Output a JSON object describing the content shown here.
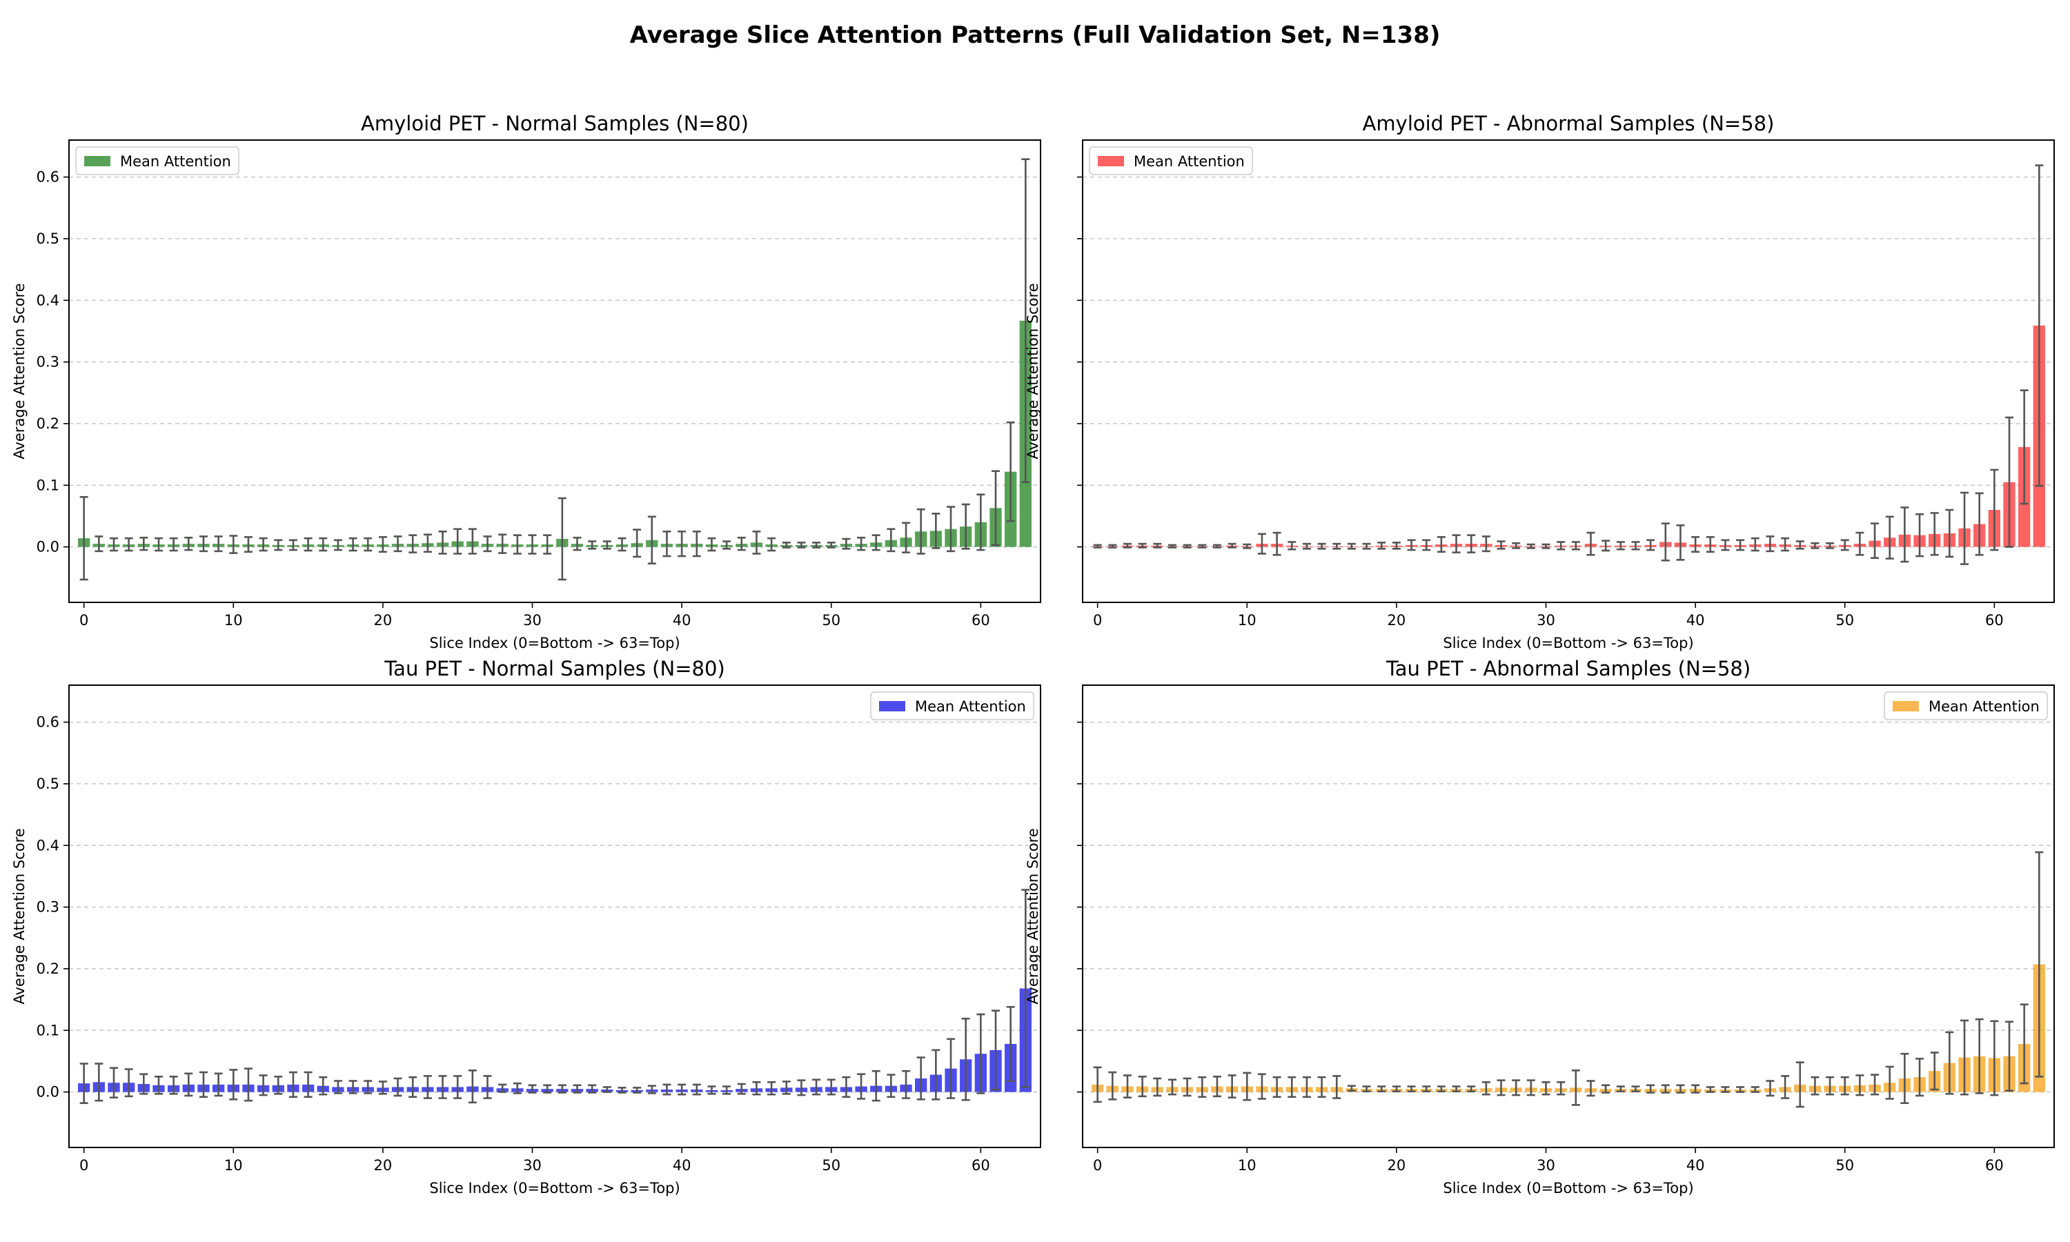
{
  "figure": {
    "title": "Average Slice Attention Patterns (Full Validation Set, N=138)"
  },
  "chart_data": [
    {
      "type": "bar",
      "title": "Amyloid PET - Normal Samples (N=80)",
      "xlabel": "Slice Index (0=Bottom -> 63=Top)",
      "ylabel": "Average Attention Score",
      "xlim": [
        -1,
        64
      ],
      "ylim": [
        -0.09,
        0.66
      ],
      "xticks": [
        0,
        10,
        20,
        30,
        40,
        50,
        60
      ],
      "yticks": [
        0.0,
        0.1,
        0.2,
        0.3,
        0.4,
        0.5,
        0.6
      ],
      "grid": "y",
      "legend": "top-left",
      "series": [
        {
          "name": "Mean Attention",
          "color": "#2e8b2e",
          "values": [
            0.014,
            0.005,
            0.004,
            0.004,
            0.005,
            0.004,
            0.004,
            0.005,
            0.005,
            0.005,
            0.004,
            0.004,
            0.004,
            0.003,
            0.003,
            0.004,
            0.004,
            0.003,
            0.004,
            0.004,
            0.004,
            0.005,
            0.005,
            0.006,
            0.007,
            0.009,
            0.009,
            0.005,
            0.005,
            0.004,
            0.004,
            0.004,
            0.013,
            0.005,
            0.003,
            0.003,
            0.004,
            0.006,
            0.011,
            0.005,
            0.005,
            0.005,
            0.004,
            0.003,
            0.005,
            0.007,
            0.004,
            0.003,
            0.003,
            0.003,
            0.003,
            0.005,
            0.005,
            0.007,
            0.011,
            0.015,
            0.025,
            0.026,
            0.029,
            0.033,
            0.04,
            0.063,
            0.122,
            0.367
          ],
          "errors": [
            0.067,
            0.012,
            0.01,
            0.01,
            0.01,
            0.01,
            0.01,
            0.01,
            0.012,
            0.012,
            0.014,
            0.012,
            0.01,
            0.008,
            0.008,
            0.01,
            0.01,
            0.008,
            0.01,
            0.01,
            0.012,
            0.012,
            0.014,
            0.014,
            0.018,
            0.02,
            0.02,
            0.012,
            0.015,
            0.015,
            0.015,
            0.015,
            0.066,
            0.01,
            0.006,
            0.006,
            0.01,
            0.022,
            0.038,
            0.02,
            0.02,
            0.02,
            0.01,
            0.006,
            0.01,
            0.018,
            0.01,
            0.004,
            0.004,
            0.004,
            0.004,
            0.008,
            0.01,
            0.012,
            0.018,
            0.024,
            0.036,
            0.028,
            0.036,
            0.036,
            0.045,
            0.06,
            0.08,
            0.262
          ]
        }
      ]
    },
    {
      "type": "bar",
      "title": "Amyloid PET - Abnormal Samples (N=58)",
      "xlabel": "Slice Index (0=Bottom -> 63=Top)",
      "ylabel": "Average Attention Score",
      "xlim": [
        -1,
        64
      ],
      "ylim": [
        -0.09,
        0.66
      ],
      "xticks": [
        0,
        10,
        20,
        30,
        40,
        50,
        60
      ],
      "yticks": [
        0.0,
        0.1,
        0.2,
        0.3,
        0.4,
        0.5,
        0.6
      ],
      "grid": "y",
      "legend": "top-left",
      "series": [
        {
          "name": "Mean Attention",
          "color": "#ff3b3b",
          "values": [
            0.001,
            0.001,
            0.002,
            0.002,
            0.002,
            0.001,
            0.001,
            0.001,
            0.001,
            0.002,
            0.001,
            0.005,
            0.005,
            0.002,
            0.001,
            0.001,
            0.001,
            0.001,
            0.001,
            0.002,
            0.002,
            0.003,
            0.003,
            0.004,
            0.005,
            0.005,
            0.005,
            0.003,
            0.002,
            0.001,
            0.001,
            0.002,
            0.002,
            0.005,
            0.002,
            0.002,
            0.002,
            0.003,
            0.008,
            0.007,
            0.004,
            0.004,
            0.003,
            0.003,
            0.004,
            0.005,
            0.004,
            0.003,
            0.002,
            0.002,
            0.003,
            0.005,
            0.01,
            0.015,
            0.02,
            0.019,
            0.021,
            0.022,
            0.03,
            0.037,
            0.06,
            0.105,
            0.162,
            0.359
          ],
          "errors": [
            0.002,
            0.002,
            0.003,
            0.003,
            0.003,
            0.002,
            0.002,
            0.002,
            0.002,
            0.003,
            0.003,
            0.016,
            0.018,
            0.006,
            0.004,
            0.004,
            0.004,
            0.004,
            0.004,
            0.005,
            0.005,
            0.008,
            0.008,
            0.012,
            0.014,
            0.014,
            0.012,
            0.006,
            0.004,
            0.003,
            0.003,
            0.006,
            0.006,
            0.018,
            0.008,
            0.006,
            0.006,
            0.008,
            0.03,
            0.028,
            0.012,
            0.012,
            0.008,
            0.008,
            0.01,
            0.012,
            0.01,
            0.006,
            0.004,
            0.004,
            0.008,
            0.018,
            0.028,
            0.034,
            0.044,
            0.034,
            0.034,
            0.038,
            0.058,
            0.05,
            0.065,
            0.105,
            0.092,
            0.26
          ]
        }
      ]
    },
    {
      "type": "bar",
      "title": "Tau PET - Normal Samples (N=80)",
      "xlabel": "Slice Index (0=Bottom -> 63=Top)",
      "ylabel": "Average Attention Score",
      "xlim": [
        -1,
        64
      ],
      "ylim": [
        -0.09,
        0.66
      ],
      "xticks": [
        0,
        10,
        20,
        30,
        40,
        50,
        60
      ],
      "yticks": [
        0.0,
        0.1,
        0.2,
        0.3,
        0.4,
        0.5,
        0.6
      ],
      "grid": "y",
      "legend": "top-right",
      "series": [
        {
          "name": "Mean Attention",
          "color": "#1f1fe6",
          "values": [
            0.014,
            0.016,
            0.015,
            0.015,
            0.013,
            0.011,
            0.011,
            0.012,
            0.012,
            0.012,
            0.012,
            0.012,
            0.011,
            0.011,
            0.012,
            0.012,
            0.01,
            0.008,
            0.008,
            0.008,
            0.007,
            0.008,
            0.008,
            0.008,
            0.008,
            0.008,
            0.009,
            0.008,
            0.006,
            0.006,
            0.005,
            0.005,
            0.005,
            0.005,
            0.005,
            0.004,
            0.003,
            0.003,
            0.004,
            0.004,
            0.004,
            0.004,
            0.003,
            0.003,
            0.005,
            0.006,
            0.006,
            0.007,
            0.007,
            0.008,
            0.008,
            0.008,
            0.009,
            0.01,
            0.01,
            0.012,
            0.022,
            0.028,
            0.038,
            0.053,
            0.062,
            0.068,
            0.078,
            0.168
          ],
          "errors": [
            0.032,
            0.03,
            0.024,
            0.022,
            0.016,
            0.014,
            0.014,
            0.018,
            0.02,
            0.018,
            0.024,
            0.026,
            0.016,
            0.014,
            0.02,
            0.02,
            0.014,
            0.01,
            0.01,
            0.01,
            0.01,
            0.014,
            0.016,
            0.018,
            0.018,
            0.018,
            0.026,
            0.018,
            0.006,
            0.008,
            0.006,
            0.006,
            0.006,
            0.006,
            0.006,
            0.004,
            0.004,
            0.004,
            0.006,
            0.008,
            0.008,
            0.008,
            0.006,
            0.006,
            0.008,
            0.01,
            0.01,
            0.01,
            0.012,
            0.012,
            0.012,
            0.016,
            0.02,
            0.024,
            0.018,
            0.022,
            0.034,
            0.04,
            0.048,
            0.066,
            0.064,
            0.064,
            0.06,
            0.16
          ]
        }
      ]
    },
    {
      "type": "bar",
      "title": "Tau PET - Abnormal Samples (N=58)",
      "xlabel": "Slice Index (0=Bottom -> 63=Top)",
      "ylabel": "Average Attention Score",
      "xlim": [
        -1,
        64
      ],
      "ylim": [
        -0.09,
        0.66
      ],
      "xticks": [
        0,
        10,
        20,
        30,
        40,
        50,
        60
      ],
      "yticks": [
        0.0,
        0.1,
        0.2,
        0.3,
        0.4,
        0.5,
        0.6
      ],
      "grid": "y",
      "legend": "top-right",
      "series": [
        {
          "name": "Mean Attention",
          "color": "#f5a623",
          "values": [
            0.012,
            0.01,
            0.009,
            0.009,
            0.008,
            0.008,
            0.008,
            0.008,
            0.009,
            0.009,
            0.009,
            0.009,
            0.008,
            0.008,
            0.008,
            0.008,
            0.008,
            0.006,
            0.005,
            0.005,
            0.005,
            0.005,
            0.005,
            0.005,
            0.005,
            0.005,
            0.006,
            0.007,
            0.007,
            0.007,
            0.006,
            0.006,
            0.007,
            0.006,
            0.005,
            0.005,
            0.005,
            0.005,
            0.005,
            0.005,
            0.005,
            0.004,
            0.004,
            0.004,
            0.004,
            0.006,
            0.008,
            0.012,
            0.01,
            0.01,
            0.01,
            0.011,
            0.012,
            0.015,
            0.022,
            0.024,
            0.034,
            0.047,
            0.056,
            0.058,
            0.055,
            0.058,
            0.078,
            0.207
          ],
          "errors": [
            0.028,
            0.022,
            0.018,
            0.016,
            0.014,
            0.012,
            0.014,
            0.016,
            0.016,
            0.018,
            0.022,
            0.02,
            0.016,
            0.016,
            0.016,
            0.016,
            0.018,
            0.004,
            0.004,
            0.004,
            0.004,
            0.004,
            0.004,
            0.004,
            0.004,
            0.004,
            0.01,
            0.012,
            0.012,
            0.012,
            0.01,
            0.01,
            0.028,
            0.012,
            0.006,
            0.004,
            0.004,
            0.006,
            0.006,
            0.006,
            0.006,
            0.004,
            0.004,
            0.004,
            0.004,
            0.012,
            0.018,
            0.036,
            0.014,
            0.014,
            0.014,
            0.016,
            0.016,
            0.026,
            0.04,
            0.03,
            0.03,
            0.05,
            0.06,
            0.06,
            0.06,
            0.056,
            0.064,
            0.182
          ]
        }
      ]
    }
  ]
}
